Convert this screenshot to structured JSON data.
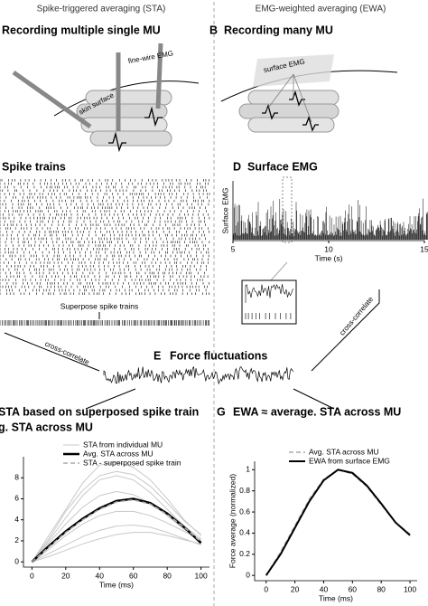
{
  "header": {
    "left": "Spike-triggered averaging (STA)",
    "right": "EMG-weighted averaging (EWA)"
  },
  "panels": {
    "a": {
      "title": "Recording multiple single MU",
      "labels": [
        "fine-wire EMG",
        "skin surface"
      ]
    },
    "b": {
      "letter": "B",
      "title": "Recording many MU",
      "label": "surface EMG"
    },
    "c": {
      "title": "Spike trains",
      "note": "Superpose spike trains"
    },
    "d": {
      "letter": "D",
      "title": "Surface EMG"
    },
    "e": {
      "letter": "E",
      "title": "Force fluctuations",
      "left_arrow": "cross-correlate",
      "right_arrow": "cross-correlate"
    },
    "f": {
      "title": [
        "STA based on superposed spike train",
        "g. STA across MU"
      ]
    },
    "g": {
      "letter": "G",
      "title": "EWA ≈ average. STA across MU"
    }
  },
  "chart_data": [
    {
      "type": "line",
      "ylabel": "Surface EMG",
      "xlabel": "Time (s)",
      "xlim": [
        5,
        15
      ],
      "xticks": [
        5,
        10,
        15
      ]
    },
    {
      "type": "line",
      "xlabel": "Time (ms)",
      "x": [
        0,
        10,
        20,
        30,
        40,
        50,
        60,
        70,
        80,
        90,
        100
      ],
      "xlim": [
        -5,
        105
      ],
      "xticks": [
        0,
        20,
        40,
        60,
        80,
        100
      ],
      "ylim": [
        -0.5,
        10
      ],
      "yticks": [
        0,
        2,
        4,
        6,
        8
      ],
      "series": [
        {
          "name": "STA from individual MU",
          "color": "#c8c8c8",
          "values": [
            0,
            2.5,
            5,
            7.5,
            9.2,
            9.5,
            9,
            7.8,
            6,
            4,
            2.5
          ]
        },
        {
          "color": "#c8c8c8",
          "values": [
            0,
            2,
            4.2,
            6.3,
            7.8,
            8.2,
            7.8,
            6.6,
            5,
            3.4,
            2.2
          ]
        },
        {
          "color": "#c8c8c8",
          "values": [
            0,
            1.2,
            2.5,
            3.6,
            4.4,
            4.8,
            4.8,
            4.4,
            3.7,
            2.9,
            2.1
          ]
        },
        {
          "color": "#c8c8c8",
          "values": [
            0,
            0.8,
            1.6,
            2.4,
            3,
            3.4,
            3.5,
            3.3,
            2.8,
            2.2,
            1.6
          ]
        },
        {
          "color": "#c8c8c8",
          "values": [
            0,
            1.8,
            3.6,
            5.2,
            6.3,
            6.7,
            6.4,
            5.6,
            4.4,
            3.1,
            2
          ]
        },
        {
          "color": "#c8c8c8",
          "values": [
            0,
            0.5,
            1.1,
            1.7,
            2.2,
            2.6,
            2.8,
            2.8,
            2.5,
            2.1,
            1.7
          ]
        },
        {
          "color": "#c8c8c8",
          "values": [
            0,
            2.2,
            4.8,
            6.8,
            8.2,
            8.6,
            8.3,
            7.2,
            5.6,
            3.9,
            2.6
          ]
        },
        {
          "name": "Avg. STA across MU",
          "color": "#000000",
          "width": 2.5,
          "values": [
            0,
            1.5,
            2.9,
            4.1,
            5.1,
            5.8,
            6,
            5.6,
            4.6,
            3.3,
            1.8
          ]
        },
        {
          "name": "STA - superposed spike train",
          "color": "#aaaaaa",
          "dash": true,
          "width": 1.5,
          "values": [
            0,
            1.4,
            2.8,
            4,
            5,
            5.7,
            5.9,
            5.5,
            4.5,
            3.3,
            1.9
          ]
        }
      ]
    },
    {
      "type": "line",
      "ylabel": "Force average (normalized)",
      "xlabel": "Time (ms)",
      "x": [
        0,
        10,
        20,
        30,
        40,
        50,
        60,
        70,
        80,
        90,
        100
      ],
      "xlim": [
        -8,
        105
      ],
      "xticks": [
        0,
        20,
        40,
        60,
        80,
        100
      ],
      "ylim": [
        -0.05,
        1.08
      ],
      "yticks": [
        0,
        0.2,
        0.4,
        0.6,
        0.8,
        1
      ],
      "series": [
        {
          "name": "Avg. STA across MU",
          "color": "#aaaaaa",
          "dash": true,
          "width": 1.5,
          "values": [
            0,
            0.22,
            0.47,
            0.72,
            0.91,
            1,
            0.96,
            0.84,
            0.67,
            0.5,
            0.39
          ]
        },
        {
          "name": "EWA from surface EMG",
          "color": "#000000",
          "width": 2,
          "values": [
            0,
            0.2,
            0.45,
            0.7,
            0.9,
            1,
            0.97,
            0.85,
            0.68,
            0.5,
            0.38
          ]
        }
      ]
    }
  ]
}
